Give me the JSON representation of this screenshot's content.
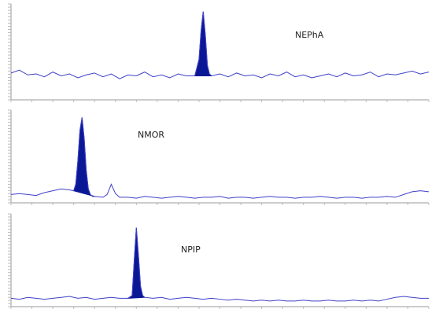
{
  "chart_data": [
    {
      "type": "line",
      "label": "NEPhA",
      "color": "#3f3fc8",
      "fill_color": "#0b1896",
      "xlim": [
        0,
        100
      ],
      "ylim": [
        0,
        100
      ],
      "fill_range": [
        44,
        48
      ],
      "x": [
        0,
        2,
        4,
        6,
        8,
        10,
        12,
        14,
        16,
        18,
        20,
        22,
        24,
        26,
        28,
        30,
        32,
        34,
        36,
        38,
        40,
        42,
        44,
        45,
        45.5,
        46,
        46.5,
        47,
        47.5,
        48,
        50,
        52,
        54,
        56,
        58,
        60,
        62,
        64,
        66,
        68,
        70,
        72,
        74,
        76,
        78,
        80,
        82,
        84,
        86,
        88,
        90,
        92,
        94,
        96,
        98,
        100
      ],
      "values": [
        28,
        31,
        26,
        27,
        24,
        29,
        25,
        27,
        23,
        26,
        28,
        24,
        27,
        22,
        26,
        25,
        29,
        24,
        26,
        23,
        27,
        25,
        25,
        42,
        72,
        92,
        68,
        36,
        27,
        25,
        27,
        24,
        28,
        25,
        26,
        23,
        27,
        25,
        29,
        24,
        26,
        23,
        25,
        27,
        24,
        28,
        25,
        26,
        29,
        24,
        27,
        26,
        28,
        30,
        27,
        29
      ]
    },
    {
      "type": "line",
      "label": "NMOR",
      "color": "#3f3fc8",
      "fill_color": "#0b1896",
      "xlim": [
        0,
        100
      ],
      "ylim": [
        0,
        100
      ],
      "fill_range": [
        15,
        20
      ],
      "x": [
        0,
        2,
        4,
        6,
        8,
        10,
        12,
        14,
        15,
        15.5,
        16,
        16.5,
        17,
        17.5,
        18,
        18.5,
        19,
        19.5,
        20,
        22,
        23,
        24,
        25,
        26,
        28,
        30,
        32,
        34,
        36,
        38,
        40,
        42,
        44,
        46,
        48,
        50,
        52,
        54,
        56,
        58,
        60,
        62,
        64,
        66,
        68,
        70,
        72,
        74,
        76,
        78,
        80,
        82,
        84,
        86,
        88,
        90,
        92,
        94,
        96,
        98,
        100
      ],
      "values": [
        9,
        10,
        9,
        8,
        11,
        13,
        15,
        14,
        13,
        20,
        45,
        78,
        92,
        70,
        35,
        15,
        9,
        7,
        7,
        6,
        9,
        20,
        10,
        6,
        6,
        5,
        7,
        6,
        5,
        6,
        7,
        6,
        5,
        6,
        6,
        7,
        5,
        6,
        6,
        5,
        6,
        7,
        6,
        6,
        5,
        6,
        6,
        7,
        6,
        5,
        6,
        6,
        5,
        6,
        6,
        7,
        6,
        9,
        12,
        13,
        12
      ]
    },
    {
      "type": "line",
      "label": "NPIP",
      "color": "#3f3fc8",
      "fill_color": "#0b1896",
      "xlim": [
        0,
        100
      ],
      "ylim": [
        0,
        100
      ],
      "fill_range": [
        28,
        32
      ],
      "x": [
        0,
        2,
        4,
        6,
        8,
        10,
        12,
        14,
        16,
        18,
        20,
        22,
        24,
        26,
        28,
        29,
        29.5,
        30,
        30.5,
        31,
        31.5,
        32,
        34,
        36,
        38,
        40,
        42,
        44,
        46,
        48,
        50,
        52,
        54,
        56,
        58,
        60,
        62,
        64,
        66,
        68,
        70,
        72,
        74,
        76,
        78,
        80,
        82,
        84,
        86,
        88,
        90,
        92,
        94,
        96,
        98,
        100
      ],
      "values": [
        9,
        8,
        10,
        9,
        8,
        9,
        10,
        11,
        9,
        10,
        8,
        9,
        10,
        9,
        9,
        12,
        50,
        85,
        55,
        22,
        12,
        10,
        9,
        10,
        8,
        9,
        10,
        9,
        8,
        9,
        8,
        7,
        8,
        7,
        6,
        7,
        6,
        7,
        6,
        6,
        7,
        6,
        6,
        7,
        6,
        6,
        7,
        6,
        7,
        6,
        8,
        10,
        11,
        10,
        9,
        9
      ]
    }
  ]
}
